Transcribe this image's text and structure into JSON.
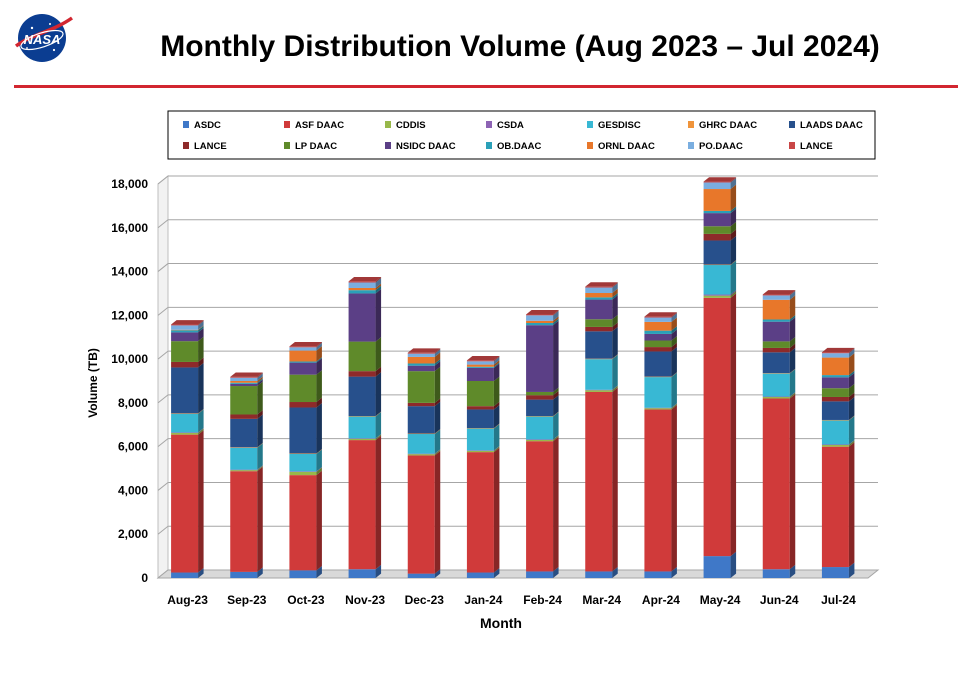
{
  "header": {
    "title": "Monthly Distribution Volume (Aug 2023 – Jul 2024)",
    "logo_text": "NASA"
  },
  "colors": {
    "title_rule": "#d22630",
    "nasa_blue": "#0b3d91"
  },
  "chart_data": {
    "type": "bar",
    "stacked": true,
    "style": "3d",
    "title": "",
    "xlabel": "Month",
    "ylabel": "Volume (TB)",
    "ylim": [
      0,
      18000
    ],
    "yticks": [
      0,
      2000,
      4000,
      6000,
      8000,
      10000,
      12000,
      14000,
      16000,
      18000
    ],
    "ytick_labels": [
      "0",
      "2,000",
      "4,000",
      "6,000",
      "8,000",
      "10,000",
      "12,000",
      "14,000",
      "16,000",
      "18,000"
    ],
    "grid": true,
    "legend_position": "top",
    "categories": [
      "Aug-23",
      "Sep-23",
      "Oct-23",
      "Nov-23",
      "Dec-23",
      "Jan-24",
      "Feb-24",
      "Mar-24",
      "Apr-24",
      "May-24",
      "Jun-24",
      "Jul-24"
    ],
    "series": [
      {
        "name": "ASDC",
        "color": "#3f78c8",
        "values": [
          250,
          280,
          350,
          400,
          200,
          250,
          300,
          300,
          300,
          1000,
          400,
          500
        ]
      },
      {
        "name": "ASF DAAC",
        "color": "#d03a3a",
        "values": [
          6300,
          4600,
          4350,
          5900,
          5400,
          5500,
          5950,
          8200,
          7400,
          11800,
          7800,
          5500
        ]
      },
      {
        "name": "CDDIS",
        "color": "#98b84a",
        "values": [
          80,
          50,
          150,
          60,
          60,
          60,
          60,
          80,
          60,
          100,
          70,
          80
        ]
      },
      {
        "name": "CSDA",
        "color": "#8d63b4",
        "values": [
          20,
          20,
          20,
          20,
          20,
          20,
          20,
          20,
          20,
          50,
          20,
          20
        ]
      },
      {
        "name": "GESDISC",
        "color": "#38b8d4",
        "values": [
          850,
          1000,
          800,
          1000,
          900,
          1000,
          1050,
          1400,
          1400,
          1350,
          1050,
          1100
        ]
      },
      {
        "name": "GHRC DAAC",
        "color": "#f0943a",
        "values": [
          20,
          20,
          20,
          20,
          20,
          20,
          20,
          20,
          20,
          20,
          20,
          20
        ]
      },
      {
        "name": "LAADS DAAC",
        "color": "#27508c",
        "values": [
          2100,
          1300,
          2100,
          1800,
          1250,
          850,
          750,
          1250,
          1150,
          1100,
          950,
          850
        ]
      },
      {
        "name": "LANCE",
        "color": "#8e2a2a",
        "values": [
          250,
          200,
          250,
          250,
          150,
          150,
          200,
          200,
          200,
          300,
          200,
          200
        ]
      },
      {
        "name": "LP DAAC",
        "color": "#5f8a2a",
        "values": [
          950,
          1300,
          1250,
          1350,
          1450,
          1150,
          150,
          350,
          300,
          350,
          300,
          400
        ]
      },
      {
        "name": "NSIDC DAAC",
        "color": "#5b3f86",
        "values": [
          400,
          100,
          550,
          2200,
          250,
          600,
          3050,
          900,
          300,
          600,
          900,
          500
        ]
      },
      {
        "name": "OB.DAAC",
        "color": "#2aa0b8",
        "values": [
          100,
          50,
          50,
          150,
          100,
          50,
          100,
          100,
          150,
          100,
          100,
          100
        ]
      },
      {
        "name": "ORNL DAAC",
        "color": "#e8772a",
        "values": [
          20,
          80,
          500,
          100,
          300,
          100,
          100,
          200,
          400,
          1000,
          900,
          800
        ]
      },
      {
        "name": "PO.DAAC",
        "color": "#7aaee0",
        "values": [
          200,
          150,
          150,
          250,
          150,
          150,
          250,
          250,
          200,
          300,
          200,
          200
        ]
      },
      {
        "name": "LANCE",
        "color": "#c94646",
        "values": [
          40,
          40,
          40,
          50,
          40,
          40,
          40,
          40,
          40,
          40,
          40,
          40
        ]
      }
    ]
  }
}
